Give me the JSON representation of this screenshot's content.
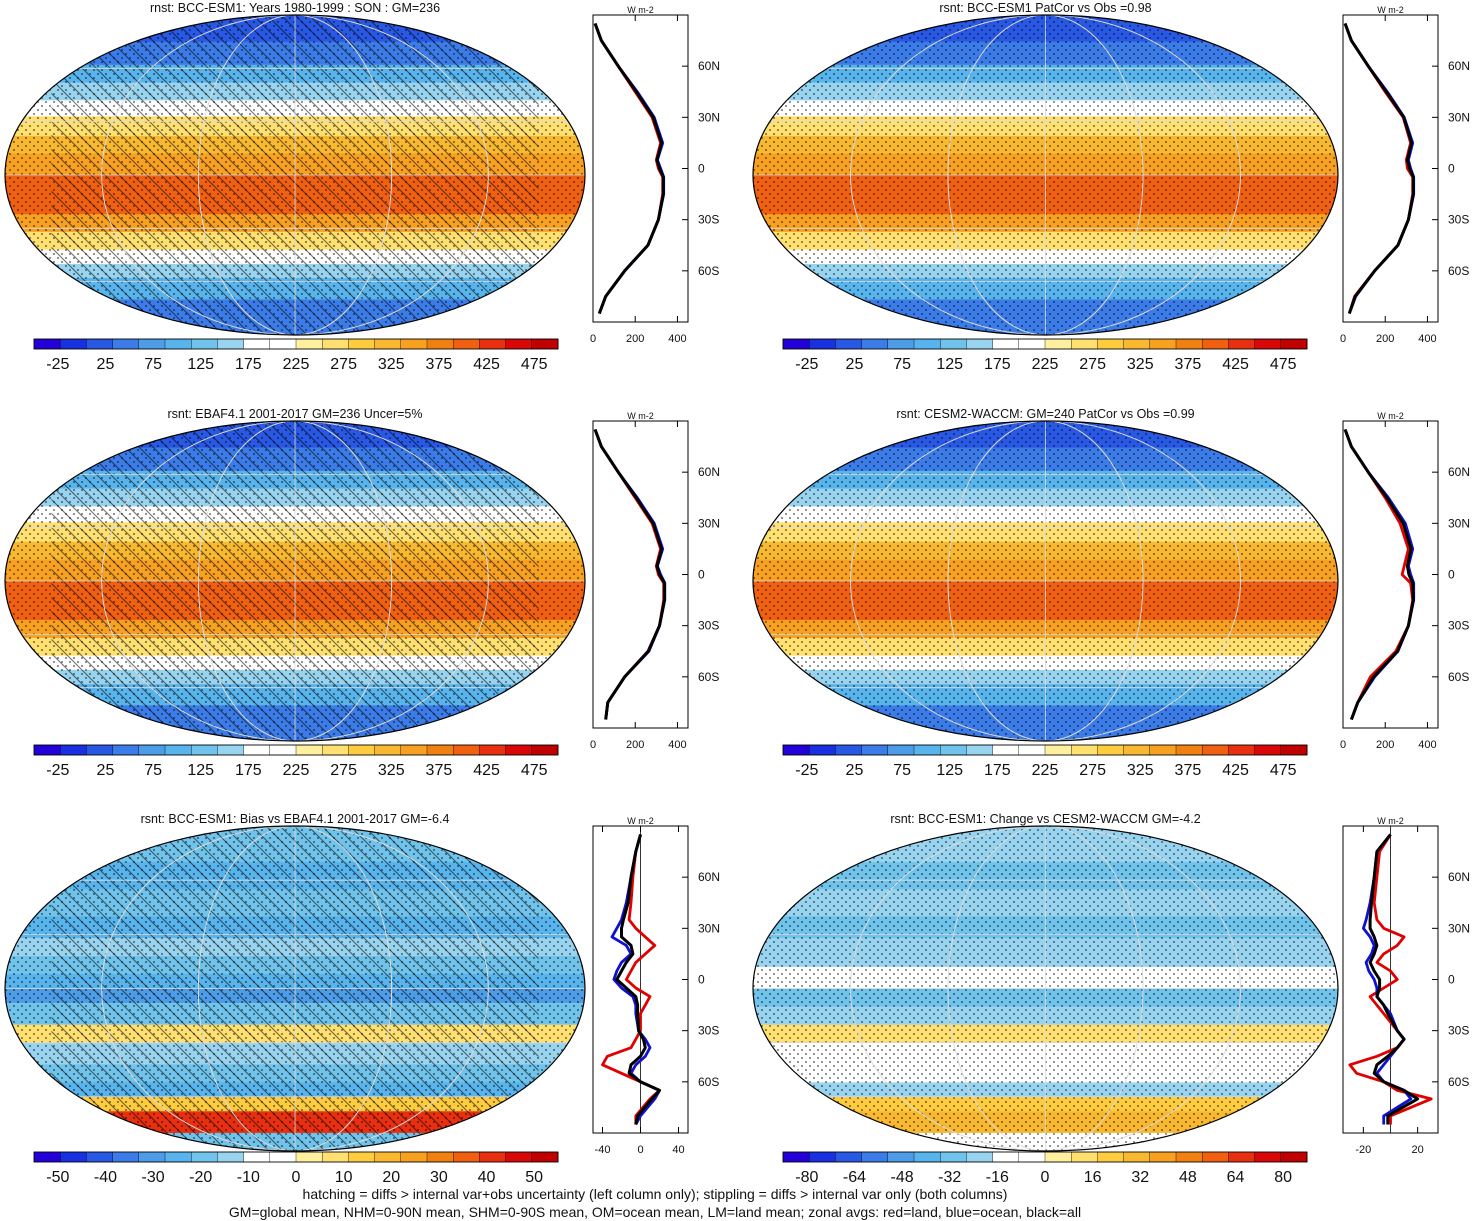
{
  "figure": {
    "footer": [
      "hatching = diffs > internal var+obs uncertainty (left column only); stippling = diffs > internal var only (both columns)",
      "GM=global mean, NHM=0-90N mean, SHM=0-90S mean, OM=ocean mean, LM=land mean; zonal avgs: red=land, blue=ocean, black=all"
    ],
    "colors": {
      "land": "#e00000",
      "ocean": "#1010d0",
      "all": "#000000"
    }
  },
  "chart_data": [
    {
      "type": "heatmap",
      "title": "rnst: BCC-ESM1: Years 1980-1999 : SON : GM=236",
      "colorbar": {
        "ticks": [
          "-25",
          "25",
          "75",
          "125",
          "175",
          "225",
          "275",
          "325",
          "375",
          "425",
          "475"
        ],
        "range": [
          -50,
          500
        ]
      },
      "field": "absolute",
      "hatching": true,
      "stippling": true,
      "zonal": {
        "unit_label": "W m-2",
        "xlim": [
          0,
          450
        ],
        "xticks": [
          "0",
          "200",
          "400"
        ],
        "yticks": [
          "60N",
          "30N",
          "0",
          "30S",
          "60S"
        ],
        "lat": [
          85,
          75,
          60,
          45,
          30,
          15,
          5,
          0,
          -5,
          -15,
          -30,
          -45,
          -60,
          -75,
          -85
        ],
        "land": [
          10,
          40,
          120,
          200,
          280,
          320,
          300,
          310,
          330,
          330,
          310,
          260,
          150,
          60,
          30
        ],
        "ocean": [
          10,
          40,
          120,
          210,
          290,
          330,
          305,
          320,
          335,
          335,
          310,
          260,
          150,
          60,
          30
        ],
        "all": [
          10,
          40,
          120,
          205,
          285,
          325,
          303,
          315,
          333,
          333,
          310,
          260,
          150,
          60,
          30
        ]
      }
    },
    {
      "type": "heatmap",
      "title": "rsnt: BCC-ESM1 PatCor vs Obs =0.98",
      "colorbar": {
        "ticks": [
          "-25",
          "25",
          "75",
          "125",
          "175",
          "225",
          "275",
          "325",
          "375",
          "425",
          "475"
        ],
        "range": [
          -50,
          500
        ]
      },
      "field": "absolute",
      "hatching": false,
      "stippling": true,
      "zonal": {
        "unit_label": "W m-2",
        "xlim": [
          0,
          450
        ],
        "xticks": [
          "0",
          "200",
          "400"
        ],
        "yticks": [
          "60N",
          "30N",
          "0",
          "30S",
          "60S"
        ],
        "lat": [
          85,
          75,
          60,
          45,
          30,
          15,
          5,
          0,
          -5,
          -15,
          -30,
          -45,
          -60,
          -75,
          -85
        ],
        "land": [
          10,
          40,
          120,
          200,
          285,
          320,
          300,
          305,
          330,
          330,
          310,
          260,
          150,
          55,
          30
        ],
        "ocean": [
          10,
          40,
          120,
          210,
          290,
          330,
          310,
          320,
          335,
          335,
          310,
          260,
          150,
          60,
          30
        ],
        "all": [
          10,
          40,
          120,
          205,
          288,
          325,
          305,
          315,
          333,
          333,
          310,
          260,
          150,
          58,
          30
        ]
      }
    },
    {
      "type": "heatmap",
      "title": "rsnt: EBAF4.1 2001-2017 GM=236 Uncer=5%",
      "colorbar": {
        "ticks": [
          "-25",
          "25",
          "75",
          "125",
          "175",
          "225",
          "275",
          "325",
          "375",
          "425",
          "475"
        ],
        "range": [
          -50,
          500
        ]
      },
      "field": "absolute",
      "hatching": true,
      "stippling": true,
      "zonal": {
        "unit_label": "W m-2",
        "xlim": [
          0,
          450
        ],
        "xticks": [
          "0",
          "200",
          "400"
        ],
        "yticks": [
          "60N",
          "30N",
          "0",
          "30S",
          "60S"
        ],
        "lat": [
          85,
          75,
          60,
          45,
          30,
          15,
          5,
          0,
          -5,
          -15,
          -30,
          -45,
          -60,
          -75,
          -85
        ],
        "land": [
          10,
          40,
          120,
          200,
          280,
          320,
          300,
          310,
          335,
          335,
          315,
          260,
          150,
          70,
          60
        ],
        "ocean": [
          10,
          40,
          120,
          210,
          290,
          330,
          305,
          320,
          340,
          340,
          315,
          265,
          150,
          70,
          60
        ],
        "all": [
          10,
          40,
          120,
          205,
          285,
          325,
          303,
          315,
          338,
          338,
          315,
          262,
          150,
          70,
          60
        ]
      }
    },
    {
      "type": "heatmap",
      "title": "rsnt: CESM2-WACCM: GM=240 PatCor vs Obs =0.99",
      "colorbar": {
        "ticks": [
          "-25",
          "25",
          "75",
          "125",
          "175",
          "225",
          "275",
          "325",
          "375",
          "425",
          "475"
        ],
        "range": [
          -50,
          500
        ]
      },
      "field": "absolute",
      "hatching": false,
      "stippling": true,
      "zonal": {
        "unit_label": "W m-2",
        "xlim": [
          0,
          450
        ],
        "xticks": [
          "0",
          "200",
          "400"
        ],
        "yticks": [
          "60N",
          "30N",
          "0",
          "30S",
          "60S"
        ],
        "lat": [
          85,
          75,
          60,
          45,
          30,
          15,
          5,
          0,
          -5,
          -15,
          -30,
          -45,
          -60,
          -75,
          -85
        ],
        "land": [
          10,
          40,
          120,
          200,
          270,
          310,
          290,
          280,
          320,
          330,
          310,
          250,
          130,
          70,
          40
        ],
        "ocean": [
          10,
          40,
          120,
          215,
          295,
          330,
          310,
          320,
          335,
          335,
          310,
          260,
          150,
          70,
          40
        ],
        "all": [
          10,
          40,
          120,
          208,
          285,
          322,
          305,
          312,
          330,
          333,
          310,
          258,
          145,
          70,
          40
        ]
      }
    },
    {
      "type": "heatmap",
      "title": "rsnt: BCC-ESM1: Bias vs EBAF4.1 2001-2017  GM=-6.4",
      "colorbar": {
        "ticks": [
          "-50",
          "-40",
          "-30",
          "-20",
          "-10",
          "0",
          "10",
          "20",
          "30",
          "40",
          "50"
        ],
        "range": [
          -55,
          55
        ]
      },
      "field": "bias",
      "hatching": true,
      "stippling": true,
      "zonal": {
        "unit_label": "W m-2",
        "xlim": [
          -50,
          50
        ],
        "xticks": [
          "-40",
          "0",
          "40"
        ],
        "yticks": [
          "60N",
          "30N",
          "0",
          "30S",
          "60S"
        ],
        "lat": [
          85,
          75,
          60,
          45,
          35,
          30,
          25,
          20,
          15,
          10,
          5,
          0,
          -5,
          -10,
          -15,
          -20,
          -30,
          -35,
          -40,
          -45,
          -50,
          -55,
          -60,
          -65,
          -70,
          -80,
          -85
        ],
        "land": [
          0,
          -5,
          -8,
          -10,
          -12,
          -5,
          5,
          15,
          5,
          -5,
          -10,
          -15,
          -5,
          10,
          5,
          0,
          0,
          -5,
          -10,
          -35,
          -40,
          -20,
          0,
          20,
          10,
          -5,
          -5
        ],
        "ocean": [
          0,
          -5,
          -10,
          -15,
          -20,
          -25,
          -30,
          -15,
          -10,
          -20,
          -25,
          -28,
          -20,
          -8,
          -5,
          -5,
          -2,
          5,
          10,
          5,
          -5,
          -10,
          0,
          20,
          15,
          0,
          -5
        ],
        "all": [
          0,
          -5,
          -10,
          -13,
          -18,
          -20,
          -20,
          -10,
          -8,
          -15,
          -20,
          -25,
          -15,
          -5,
          -3,
          -3,
          -2,
          3,
          5,
          0,
          -10,
          -12,
          0,
          20,
          12,
          -3,
          -5
        ]
      }
    },
    {
      "type": "heatmap",
      "title": "rsnt: BCC-ESM1: Change vs CESM2-WACCM GM=-4.2",
      "colorbar": {
        "ticks": [
          "-80",
          "-64",
          "-48",
          "-32",
          "-16",
          "0",
          "16",
          "32",
          "48",
          "64",
          "80"
        ],
        "range": [
          -88,
          88
        ]
      },
      "field": "change",
      "hatching": false,
      "stippling": true,
      "zonal": {
        "unit_label": "W m-2",
        "xlim": [
          -35,
          35
        ],
        "xticks": [
          "-20",
          "20"
        ],
        "yticks": [
          "60N",
          "30N",
          "0",
          "30S",
          "60S"
        ],
        "lat": [
          85,
          75,
          60,
          45,
          35,
          30,
          25,
          20,
          15,
          10,
          5,
          0,
          -5,
          -10,
          -15,
          -20,
          -30,
          -35,
          -40,
          -45,
          -50,
          -55,
          -60,
          -65,
          -70,
          -80,
          -85
        ],
        "land": [
          0,
          -8,
          -10,
          -12,
          -10,
          -5,
          10,
          5,
          -5,
          -10,
          0,
          5,
          -5,
          -15,
          -10,
          -5,
          5,
          10,
          5,
          -10,
          -30,
          -25,
          -5,
          5,
          30,
          0,
          0
        ],
        "ocean": [
          0,
          -10,
          -12,
          -15,
          -18,
          -20,
          -15,
          -12,
          -14,
          -18,
          -16,
          -12,
          -10,
          -10,
          -5,
          0,
          5,
          10,
          5,
          0,
          -5,
          -10,
          -5,
          10,
          15,
          -5,
          -5
        ],
        "all": [
          0,
          -10,
          -12,
          -14,
          -15,
          -15,
          -12,
          -10,
          -12,
          -15,
          -12,
          -8,
          -8,
          -10,
          -5,
          -2,
          5,
          10,
          5,
          -2,
          -10,
          -12,
          -5,
          10,
          20,
          -2,
          -2
        ]
      }
    }
  ]
}
